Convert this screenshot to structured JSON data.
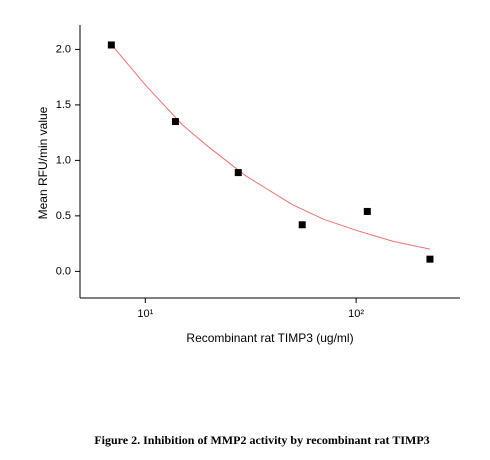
{
  "chart_data": {
    "type": "scatter",
    "caption": "Figure 2. Inhibition of MMP2 activity by recombinant rat TIMP3",
    "x_label": "Recombinant rat TIMP3 (ug/ml)",
    "y_label": "Mean RFU/min value",
    "x_log": true,
    "xlim": [
      4.9,
      311
    ],
    "ylim": [
      -0.24,
      2.22
    ],
    "xticks": [
      {
        "value": 10,
        "label": "10¹"
      },
      {
        "value": 100,
        "label": "10²"
      }
    ],
    "yticks": [
      {
        "value": 0,
        "label": "0.0"
      },
      0.5,
      {
        "value": 1,
        "label": "1.0"
      },
      1.5,
      {
        "value": 2,
        "label": "2.0"
      }
    ],
    "series": [
      {
        "type": "scatter",
        "color": "#000000",
        "x": [
          6.9,
          13.9,
          27.6,
          55.5,
          113,
          224
        ],
        "values": [
          2.04,
          1.35,
          0.89,
          0.42,
          0.54,
          0.11
        ]
      },
      {
        "type": "line",
        "color": "#f07070",
        "x": [
          7,
          10,
          15,
          20,
          30,
          50,
          70,
          100,
          150,
          224
        ],
        "values": [
          2.03,
          1.68,
          1.32,
          1.12,
          0.86,
          0.6,
          0.47,
          0.37,
          0.27,
          0.2
        ]
      }
    ]
  }
}
